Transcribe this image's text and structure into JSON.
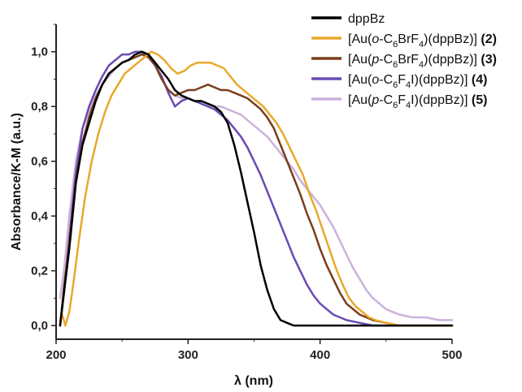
{
  "chart_data": {
    "type": "line",
    "xlabel": "λ (nm)",
    "ylabel": "Absorbance/K-M (a.u.)",
    "xlim": [
      200,
      500
    ],
    "ylim": [
      -0.05,
      1.1
    ],
    "x_ticks": [
      "200",
      "300",
      "400",
      "500"
    ],
    "y_ticks": [
      "0,0",
      "0,2",
      "0,4",
      "0,6",
      "0,8",
      "1,0"
    ],
    "legend_position": "top-right",
    "grid": false,
    "series": [
      {
        "name": "dppBz",
        "color": "#000000",
        "points": [
          [
            203,
            0.0
          ],
          [
            206,
            0.12
          ],
          [
            210,
            0.28
          ],
          [
            215,
            0.52
          ],
          [
            220,
            0.66
          ],
          [
            225,
            0.74
          ],
          [
            230,
            0.82
          ],
          [
            235,
            0.88
          ],
          [
            240,
            0.92
          ],
          [
            245,
            0.94
          ],
          [
            250,
            0.96
          ],
          [
            255,
            0.97
          ],
          [
            260,
            0.99
          ],
          [
            265,
            1.0
          ],
          [
            270,
            0.99
          ],
          [
            275,
            0.96
          ],
          [
            280,
            0.93
          ],
          [
            285,
            0.9
          ],
          [
            290,
            0.86
          ],
          [
            295,
            0.84
          ],
          [
            300,
            0.83
          ],
          [
            305,
            0.82
          ],
          [
            310,
            0.82
          ],
          [
            315,
            0.81
          ],
          [
            320,
            0.8
          ],
          [
            325,
            0.78
          ],
          [
            330,
            0.74
          ],
          [
            335,
            0.66
          ],
          [
            340,
            0.56
          ],
          [
            345,
            0.45
          ],
          [
            350,
            0.34
          ],
          [
            355,
            0.22
          ],
          [
            360,
            0.13
          ],
          [
            365,
            0.06
          ],
          [
            370,
            0.02
          ],
          [
            375,
            0.01
          ],
          [
            380,
            0.0
          ],
          [
            390,
            0.0
          ],
          [
            420,
            0.0
          ],
          [
            460,
            0.0
          ],
          [
            500,
            0.0
          ]
        ]
      },
      {
        "name": "[Au(o-C6BrF4)(dppBz)] (2)",
        "label_parts": [
          "[Au(",
          "o",
          "-C",
          "6",
          "BrF",
          "4",
          ")(dppBz)] ",
          "(2)"
        ],
        "color": "#E8A92B",
        "points": [
          [
            204,
            0.05
          ],
          [
            207,
            0.0
          ],
          [
            210,
            0.05
          ],
          [
            213,
            0.15
          ],
          [
            217,
            0.3
          ],
          [
            222,
            0.47
          ],
          [
            227,
            0.6
          ],
          [
            232,
            0.7
          ],
          [
            237,
            0.78
          ],
          [
            242,
            0.84
          ],
          [
            247,
            0.88
          ],
          [
            252,
            0.92
          ],
          [
            257,
            0.94
          ],
          [
            262,
            0.96
          ],
          [
            267,
            0.98
          ],
          [
            272,
            1.0
          ],
          [
            277,
            0.99
          ],
          [
            282,
            0.97
          ],
          [
            287,
            0.94
          ],
          [
            292,
            0.92
          ],
          [
            297,
            0.93
          ],
          [
            302,
            0.95
          ],
          [
            307,
            0.96
          ],
          [
            312,
            0.96
          ],
          [
            317,
            0.96
          ],
          [
            322,
            0.95
          ],
          [
            327,
            0.94
          ],
          [
            332,
            0.91
          ],
          [
            337,
            0.88
          ],
          [
            342,
            0.86
          ],
          [
            347,
            0.84
          ],
          [
            352,
            0.82
          ],
          [
            357,
            0.8
          ],
          [
            362,
            0.77
          ],
          [
            367,
            0.74
          ],
          [
            372,
            0.7
          ],
          [
            377,
            0.65
          ],
          [
            382,
            0.6
          ],
          [
            387,
            0.55
          ],
          [
            392,
            0.48
          ],
          [
            397,
            0.42
          ],
          [
            402,
            0.35
          ],
          [
            407,
            0.28
          ],
          [
            412,
            0.21
          ],
          [
            417,
            0.15
          ],
          [
            422,
            0.1
          ],
          [
            427,
            0.07
          ],
          [
            432,
            0.05
          ],
          [
            437,
            0.03
          ],
          [
            442,
            0.02
          ],
          [
            450,
            0.01
          ],
          [
            460,
            0.0
          ],
          [
            480,
            0.0
          ],
          [
            500,
            0.0
          ]
        ]
      },
      {
        "name": "[Au(p-C6BrF4)(dppBz)] (3)",
        "label_parts": [
          "[Au(",
          "p",
          "-C",
          "6",
          "BrF",
          "4",
          ")(dppBz)] ",
          "(3)"
        ],
        "color": "#7A3E1C",
        "points": [
          [
            203,
            0.0
          ],
          [
            206,
            0.14
          ],
          [
            210,
            0.3
          ],
          [
            215,
            0.53
          ],
          [
            220,
            0.67
          ],
          [
            225,
            0.76
          ],
          [
            230,
            0.83
          ],
          [
            235,
            0.88
          ],
          [
            240,
            0.92
          ],
          [
            245,
            0.94
          ],
          [
            250,
            0.96
          ],
          [
            255,
            0.97
          ],
          [
            260,
            0.98
          ],
          [
            265,
            0.99
          ],
          [
            270,
            0.98
          ],
          [
            275,
            0.95
          ],
          [
            280,
            0.9
          ],
          [
            285,
            0.86
          ],
          [
            290,
            0.84
          ],
          [
            295,
            0.85
          ],
          [
            300,
            0.86
          ],
          [
            305,
            0.86
          ],
          [
            310,
            0.87
          ],
          [
            315,
            0.88
          ],
          [
            320,
            0.87
          ],
          [
            325,
            0.86
          ],
          [
            330,
            0.86
          ],
          [
            335,
            0.85
          ],
          [
            340,
            0.84
          ],
          [
            345,
            0.83
          ],
          [
            350,
            0.81
          ],
          [
            355,
            0.79
          ],
          [
            360,
            0.76
          ],
          [
            365,
            0.72
          ],
          [
            370,
            0.66
          ],
          [
            375,
            0.6
          ],
          [
            380,
            0.54
          ],
          [
            385,
            0.48
          ],
          [
            390,
            0.41
          ],
          [
            395,
            0.35
          ],
          [
            400,
            0.28
          ],
          [
            405,
            0.22
          ],
          [
            410,
            0.17
          ],
          [
            415,
            0.12
          ],
          [
            420,
            0.08
          ],
          [
            425,
            0.06
          ],
          [
            430,
            0.04
          ],
          [
            435,
            0.03
          ],
          [
            440,
            0.02
          ],
          [
            450,
            0.01
          ],
          [
            460,
            0.0
          ],
          [
            500,
            0.0
          ]
        ]
      },
      {
        "name": "[Au(o-C6F4I)(dppBz)] (4)",
        "label_parts": [
          "[Au(",
          "o",
          "-C",
          "6",
          "F",
          "4",
          "I)(dppBz)] ",
          "(4)"
        ],
        "color": "#6A4BB3",
        "points": [
          [
            203,
            0.0
          ],
          [
            206,
            0.12
          ],
          [
            210,
            0.32
          ],
          [
            215,
            0.56
          ],
          [
            220,
            0.72
          ],
          [
            225,
            0.8
          ],
          [
            230,
            0.86
          ],
          [
            235,
            0.91
          ],
          [
            240,
            0.95
          ],
          [
            245,
            0.97
          ],
          [
            250,
            0.99
          ],
          [
            255,
            0.99
          ],
          [
            260,
            1.0
          ],
          [
            265,
            1.0
          ],
          [
            270,
            0.98
          ],
          [
            275,
            0.95
          ],
          [
            280,
            0.91
          ],
          [
            285,
            0.85
          ],
          [
            290,
            0.8
          ],
          [
            295,
            0.82
          ],
          [
            300,
            0.83
          ],
          [
            305,
            0.82
          ],
          [
            310,
            0.81
          ],
          [
            315,
            0.8
          ],
          [
            320,
            0.79
          ],
          [
            325,
            0.77
          ],
          [
            330,
            0.75
          ],
          [
            335,
            0.72
          ],
          [
            340,
            0.69
          ],
          [
            345,
            0.65
          ],
          [
            350,
            0.6
          ],
          [
            355,
            0.55
          ],
          [
            360,
            0.49
          ],
          [
            365,
            0.43
          ],
          [
            370,
            0.37
          ],
          [
            375,
            0.31
          ],
          [
            380,
            0.25
          ],
          [
            385,
            0.2
          ],
          [
            390,
            0.15
          ],
          [
            395,
            0.11
          ],
          [
            400,
            0.08
          ],
          [
            405,
            0.06
          ],
          [
            410,
            0.04
          ],
          [
            415,
            0.03
          ],
          [
            420,
            0.02
          ],
          [
            430,
            0.01
          ],
          [
            440,
            0.0
          ],
          [
            500,
            0.0
          ]
        ]
      },
      {
        "name": "[Au(p-C6F4I)(dppBz)] (5)",
        "label_parts": [
          "[Au(",
          "p",
          "-C",
          "6",
          "F",
          "4",
          "I)(dppBz)] ",
          "(5)"
        ],
        "color": "#CBB2DB",
        "points": [
          [
            203,
            0.1
          ],
          [
            206,
            0.2
          ],
          [
            210,
            0.4
          ],
          [
            215,
            0.6
          ],
          [
            220,
            0.72
          ],
          [
            225,
            0.78
          ],
          [
            230,
            0.84
          ],
          [
            235,
            0.88
          ],
          [
            240,
            0.91
          ],
          [
            245,
            0.94
          ],
          [
            250,
            0.96
          ],
          [
            255,
            0.97
          ],
          [
            260,
            0.98
          ],
          [
            265,
            0.99
          ],
          [
            270,
            0.98
          ],
          [
            275,
            0.95
          ],
          [
            280,
            0.9
          ],
          [
            285,
            0.86
          ],
          [
            290,
            0.84
          ],
          [
            295,
            0.83
          ],
          [
            300,
            0.83
          ],
          [
            305,
            0.82
          ],
          [
            310,
            0.82
          ],
          [
            315,
            0.81
          ],
          [
            320,
            0.8
          ],
          [
            325,
            0.8
          ],
          [
            330,
            0.79
          ],
          [
            335,
            0.78
          ],
          [
            340,
            0.77
          ],
          [
            345,
            0.75
          ],
          [
            350,
            0.73
          ],
          [
            355,
            0.71
          ],
          [
            360,
            0.69
          ],
          [
            365,
            0.66
          ],
          [
            370,
            0.63
          ],
          [
            375,
            0.6
          ],
          [
            380,
            0.57
          ],
          [
            385,
            0.53
          ],
          [
            390,
            0.5
          ],
          [
            395,
            0.47
          ],
          [
            400,
            0.44
          ],
          [
            405,
            0.4
          ],
          [
            410,
            0.36
          ],
          [
            415,
            0.31
          ],
          [
            420,
            0.26
          ],
          [
            425,
            0.21
          ],
          [
            430,
            0.17
          ],
          [
            435,
            0.13
          ],
          [
            440,
            0.1
          ],
          [
            445,
            0.08
          ],
          [
            450,
            0.06
          ],
          [
            455,
            0.05
          ],
          [
            460,
            0.04
          ],
          [
            470,
            0.03
          ],
          [
            480,
            0.03
          ],
          [
            490,
            0.02
          ],
          [
            500,
            0.02
          ]
        ]
      }
    ]
  }
}
